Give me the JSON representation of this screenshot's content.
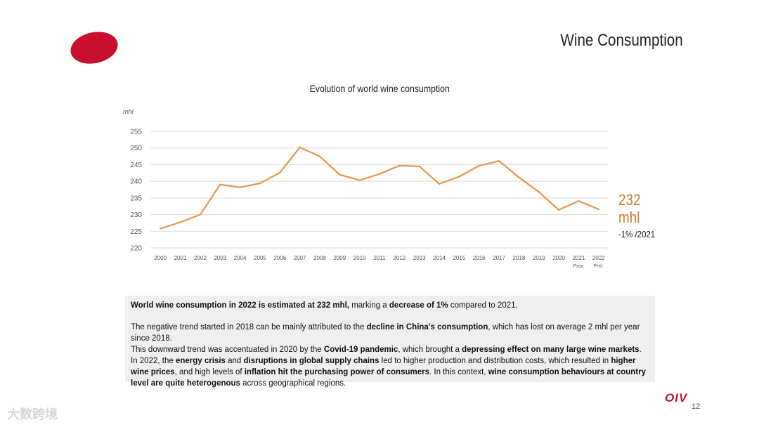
{
  "slide": {
    "title": "Wine  Consumption",
    "page_number": "12",
    "logo_text": "OIV",
    "watermark": "大数跨境"
  },
  "callout": {
    "value": "232",
    "unit": "mhl",
    "change": "-1% /2021"
  },
  "colors": {
    "line": "#e8944a",
    "accent": "#c27b2e",
    "brand_red": "#c8102e",
    "grid": "#d9d9d9",
    "textbox_bg": "#efefef"
  },
  "chart_data": {
    "type": "line",
    "title": "Evolution of world wine consumption",
    "ylabel": "mhl",
    "xlabel": "",
    "ylim": [
      220,
      255
    ],
    "yticks": [
      220,
      225,
      230,
      235,
      240,
      245,
      250,
      255
    ],
    "grid": true,
    "categories": [
      "2000",
      "2001",
      "2002",
      "2003",
      "2004",
      "2005",
      "2006",
      "2007",
      "2008",
      "2009",
      "2010",
      "2011",
      "2012",
      "2013",
      "2014",
      "2015",
      "2016",
      "2017",
      "2018",
      "2019",
      "2020",
      "2021",
      "2022"
    ],
    "category_sublabels": [
      "",
      "",
      "",
      "",
      "",
      "",
      "",
      "",
      "",
      "",
      "",
      "",
      "",
      "",
      "",
      "",
      "",
      "",
      "",
      "",
      "",
      "Prov.",
      "Prel."
    ],
    "series": [
      {
        "name": "World wine consumption",
        "values": [
          225.8,
          227.7,
          230.0,
          239.0,
          238.2,
          239.4,
          242.6,
          250.2,
          247.5,
          242.0,
          240.3,
          242.2,
          244.7,
          244.5,
          239.2,
          241.4,
          244.7,
          246.1,
          241.2,
          236.8,
          231.4,
          234.1,
          231.6
        ]
      }
    ]
  },
  "description": {
    "para1": {
      "b1": "World wine consumption in 2022 is estimated at 232 mhl,",
      "t1": " marking a ",
      "b2": "decrease of 1%",
      "t2": " compared to 2021."
    },
    "para2": {
      "t1": "The negative trend started in 2018 can be mainly attributed to the ",
      "b1": "decline in China's consumption",
      "t2": ", which has lost on average 2 mhl per year since 2018."
    },
    "para3": {
      "t1": "This downward trend was accentuated in 2020 by the ",
      "b1": "Covid-19 pandemic",
      "t2": ", which brought a ",
      "b2": "depressing effect on many large wine markets",
      "t3": "."
    },
    "para4": {
      "t1": "In 2022, the ",
      "b1": "energy crisis",
      "t2": " and ",
      "b2": "disruptions in global supply chains",
      "t3": " led to higher production and distribution costs, which resulted in ",
      "b3": "higher wine prices",
      "t4": ", and high levels of ",
      "b4": "inflation hit the purchasing power of consumers",
      "t5": ". In this context, ",
      "b5": "wine consumption behaviours at country level are quite heterogenous",
      "t6": " across geographical regions."
    }
  }
}
